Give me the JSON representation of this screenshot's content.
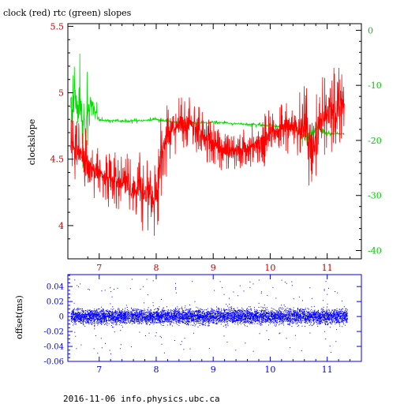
{
  "chart_data": [
    {
      "type": "line",
      "title": "clock (red) rtc (green) slopes",
      "xlabel": "",
      "ylabel": "clockslope",
      "xlim": [
        6.45,
        11.6
      ],
      "ylim": [
        3.75,
        5.52
      ],
      "y2lim": [
        -41.5,
        1.2
      ],
      "x_ticks": [
        7,
        8,
        9,
        10,
        11
      ],
      "y_ticks": [
        4,
        4.5,
        5,
        5.5
      ],
      "y2_ticks": [
        0,
        -10,
        -20,
        -30,
        -40
      ],
      "grid": false,
      "colors": {
        "clock": "#ff0000",
        "rtc": "#00e000",
        "axis": "#000000",
        "y_axis_left": "#cc0000",
        "y_axis_right": "#00cc00"
      },
      "series": [
        {
          "name": "clock",
          "axis": "left",
          "x": [
            6.5,
            6.7,
            7.0,
            7.3,
            7.6,
            7.9,
            8.0,
            8.1,
            8.3,
            8.6,
            8.9,
            9.2,
            9.5,
            9.8,
            10.1,
            10.4,
            10.6,
            10.75,
            10.9,
            11.1,
            11.3
          ],
          "y": [
            4.6,
            4.52,
            4.38,
            4.33,
            4.3,
            4.22,
            4.2,
            4.58,
            4.75,
            4.78,
            4.65,
            4.55,
            4.58,
            4.62,
            4.7,
            4.75,
            4.72,
            4.6,
            4.82,
            4.88,
            4.92
          ],
          "spread": [
            0.18,
            0.16,
            0.13,
            0.14,
            0.15,
            0.22,
            0.2,
            0.2,
            0.14,
            0.12,
            0.12,
            0.09,
            0.09,
            0.12,
            0.13,
            0.14,
            0.22,
            0.25,
            0.2,
            0.2,
            0.16
          ]
        },
        {
          "name": "rtc",
          "axis": "right",
          "x": [
            6.5,
            6.6,
            6.75,
            6.85,
            7.0,
            7.3,
            7.6,
            8.0,
            8.2,
            8.5,
            9.0,
            9.5,
            10.0,
            10.3,
            10.5,
            10.65,
            10.8,
            11.0,
            11.3
          ],
          "y": [
            -15,
            -12,
            -17,
            -13,
            -16.3,
            -16.5,
            -16.5,
            -16.2,
            -16.5,
            -16.9,
            -16.7,
            -17.0,
            -17.3,
            -17.7,
            -18.2,
            -20,
            -17.8,
            -18.7,
            -18.8
          ],
          "spread": [
            9,
            9,
            7,
            5,
            0.4,
            0.3,
            0.3,
            0.3,
            0.3,
            0.3,
            0.3,
            0.3,
            0.3,
            0.3,
            0.5,
            3.0,
            1.8,
            0.4,
            0.3
          ]
        }
      ]
    },
    {
      "type": "scatter",
      "xlabel": "",
      "ylabel": "offset(ms)",
      "xlim": [
        6.45,
        11.6
      ],
      "ylim": [
        -0.06,
        0.056
      ],
      "x_ticks": [
        7,
        8,
        9,
        10,
        11
      ],
      "y_ticks": [
        0.04,
        0.02,
        0,
        -0.02,
        -0.04,
        -0.06
      ],
      "grid": false,
      "colors": {
        "points": "#0000ff",
        "axis": "#0000ff"
      },
      "series": [
        {
          "name": "offset",
          "x_range": [
            6.5,
            11.35
          ],
          "center": 0,
          "typical_spread": [
            -0.02,
            0.02
          ],
          "extreme_range": [
            -0.05,
            0.05
          ]
        }
      ]
    }
  ],
  "footer": "2016-11-06 info.physics.ubc.ca"
}
